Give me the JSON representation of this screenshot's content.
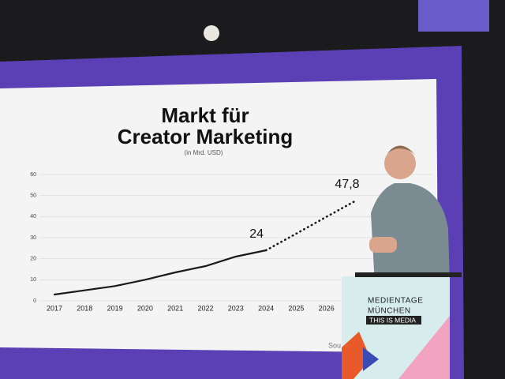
{
  "chart_data": {
    "type": "line",
    "title_lines": [
      "Markt für",
      "Creator Marketing"
    ],
    "subtitle": "(in Mrd. USD)",
    "categories": [
      "2017",
      "2018",
      "2019",
      "2020",
      "2021",
      "2022",
      "2023",
      "2024",
      "2025",
      "2026",
      null
    ],
    "series": [
      {
        "name": null,
        "color": "#1a1a1a",
        "style": "solid",
        "values": [
          3,
          5,
          7,
          10,
          13.5,
          16.5,
          21,
          24,
          null,
          null,
          null
        ],
        "value_labels": [
          null,
          null,
          null,
          null,
          null,
          null,
          null,
          "24",
          null,
          null,
          null
        ]
      },
      {
        "name": null,
        "color": "#1a1a1a",
        "style": "dotted",
        "values": [
          null,
          null,
          null,
          null,
          null,
          null,
          null,
          24,
          31.9,
          39.9,
          47.8
        ],
        "value_labels": [
          null,
          null,
          null,
          null,
          null,
          null,
          null,
          null,
          null,
          null,
          "47,8"
        ]
      }
    ],
    "ylim": [
      0,
      60
    ],
    "yticks": [
      0,
      10,
      20,
      30,
      40,
      50,
      60
    ],
    "grid": true,
    "source": "Sou"
  },
  "scene": {
    "podium": {
      "line1": "MEDIENTAGE",
      "line2": "MÜNCHEN",
      "tagline": "THIS IS MEDIA"
    }
  }
}
